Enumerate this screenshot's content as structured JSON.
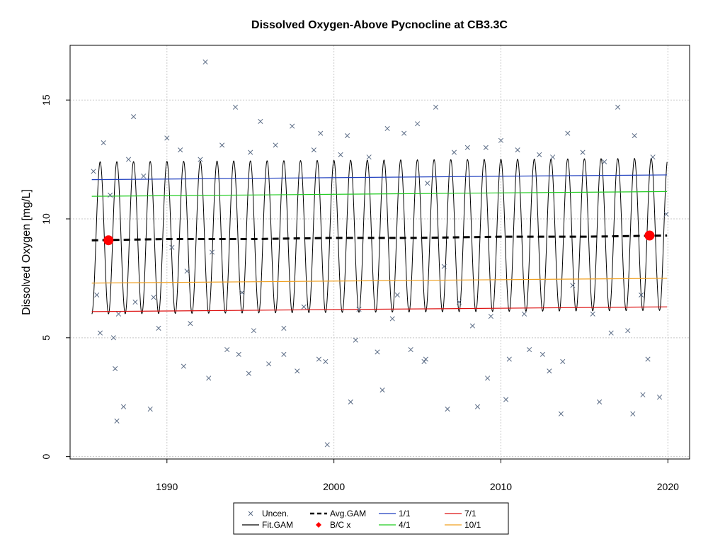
{
  "chart_data": {
    "type": "scatter",
    "title": "Dissolved Oxygen-Above Pycnocline at CB3.3C",
    "xlabel": "",
    "ylabel": "Dissolved Oxygen [mg/L]",
    "xlim": [
      1984.2,
      2021.3
    ],
    "ylim": [
      -0.1,
      17.3
    ],
    "xticks": [
      1990,
      2000,
      2010,
      2020
    ],
    "yticks": [
      0,
      5,
      10,
      15
    ],
    "grid": true,
    "legend_position": "bottom-center",
    "legend": {
      "columns": [
        [
          {
            "label": "Uncen.",
            "kind": "x",
            "color": "#5a6b85"
          },
          {
            "label": "Fit.GAM",
            "kind": "line",
            "color": "#000000"
          }
        ],
        [
          {
            "label": "Avg.GAM",
            "kind": "dash",
            "color": "#000000"
          },
          {
            "label": "B/C x",
            "kind": "diamond",
            "color": "#ff0000"
          }
        ],
        [
          {
            "label": "1/1",
            "kind": "line",
            "color": "#1f3fbf"
          },
          {
            "label": "4/1",
            "kind": "line",
            "color": "#22cc22"
          }
        ],
        [
          {
            "label": "7/1",
            "kind": "line",
            "color": "#dd1111"
          },
          {
            "label": "10/1",
            "kind": "line",
            "color": "#f0a020"
          }
        ]
      ]
    },
    "fit_gam": {
      "x_start": 1985.5,
      "x_end": 2019.95,
      "mean_start": 9.2,
      "mean_end": 9.35,
      "amplitude": 3.2,
      "color": "#000000"
    },
    "avg_gam": {
      "x": [
        1985.5,
        1990,
        1995,
        2000,
        2005,
        2010,
        2015,
        2019.95
      ],
      "y": [
        9.1,
        9.15,
        9.15,
        9.2,
        9.2,
        9.25,
        9.25,
        9.3
      ],
      "color": "#000000"
    },
    "seasonal_series": [
      {
        "name": "1/1",
        "color": "#1f3fbf",
        "x": [
          1985.5,
          2019.95
        ],
        "y": [
          11.65,
          11.85
        ]
      },
      {
        "name": "4/1",
        "color": "#22cc22",
        "x": [
          1985.5,
          2019.95
        ],
        "y": [
          10.95,
          11.15
        ]
      },
      {
        "name": "10/1",
        "color": "#f0a020",
        "x": [
          1985.5,
          2019.95
        ],
        "y": [
          7.3,
          7.5
        ]
      },
      {
        "name": "7/1",
        "color": "#dd1111",
        "x": [
          1985.5,
          2019.95
        ],
        "y": [
          6.1,
          6.3
        ]
      }
    ],
    "bc_points": {
      "color": "#ff0000",
      "x": [
        1986.5,
        2018.9
      ],
      "y": [
        9.1,
        9.3
      ]
    },
    "uncen": {
      "color": "#5a6b85",
      "x": [
        1985.6,
        1985.8,
        1986.0,
        1986.2,
        1986.6,
        1986.8,
        1987.1,
        1987.4,
        1987.7,
        1988.0,
        1988.1,
        1988.6,
        1989.2,
        1989.5,
        1990.0,
        1990.3,
        1990.8,
        1991.2,
        1991.4,
        1992.0,
        1992.3,
        1992.5,
        1992.7,
        1993.3,
        1993.6,
        1994.1,
        1994.3,
        1994.5,
        1995.0,
        1995.2,
        1995.6,
        1996.1,
        1996.5,
        1997.0,
        1997.5,
        1997.8,
        1998.2,
        1998.8,
        1999.2,
        1999.5,
        1999.6,
        2000.4,
        2000.8,
        2001.3,
        2001.5,
        2002.1,
        2002.6,
        2003.2,
        2003.5,
        2003.8,
        2004.2,
        2004.6,
        2005.0,
        2005.4,
        2005.6,
        2006.1,
        2006.6,
        2007.2,
        2007.5,
        2008.0,
        2008.3,
        2008.6,
        2009.1,
        2009.4,
        2010.0,
        2010.5,
        2011.0,
        2011.4,
        2011.7,
        2012.3,
        2012.5,
        2013.1,
        2013.6,
        2014.0,
        2014.3,
        2014.9,
        2015.5,
        2016.2,
        2016.6,
        2017.0,
        2017.6,
        2018.0,
        2018.4,
        2018.8,
        2019.1,
        2019.5,
        2019.9,
        1987.0,
        1989.0,
        1991.0,
        1994.9,
        1997.0,
        2001.0,
        2002.9,
        2006.8,
        2009.2,
        2012.9,
        2015.9,
        2017.9,
        2005.5,
        2010.3,
        1986.9,
        1999.1,
        2013.7,
        2018.5
      ],
      "y": [
        12.0,
        6.8,
        5.2,
        13.2,
        11.0,
        5.0,
        6.0,
        2.1,
        12.5,
        14.3,
        6.5,
        11.8,
        6.7,
        5.4,
        13.4,
        8.8,
        12.9,
        7.8,
        5.6,
        12.5,
        16.6,
        3.3,
        8.6,
        13.1,
        4.5,
        14.7,
        4.3,
        6.9,
        12.8,
        5.3,
        14.1,
        3.9,
        13.1,
        5.4,
        13.9,
        3.6,
        6.3,
        12.9,
        13.6,
        4.0,
        0.5,
        12.7,
        13.5,
        4.9,
        6.2,
        12.6,
        4.4,
        13.8,
        5.8,
        6.8,
        13.6,
        4.5,
        14.0,
        4.0,
        11.5,
        14.7,
        8.0,
        12.8,
        6.5,
        13.0,
        5.5,
        2.1,
        13.0,
        5.9,
        13.3,
        4.1,
        12.9,
        6.0,
        4.5,
        12.7,
        4.3,
        12.6,
        1.8,
        13.6,
        7.2,
        12.8,
        6.0,
        12.4,
        5.2,
        14.7,
        5.3,
        13.5,
        6.8,
        4.1,
        12.6,
        2.5,
        10.2,
        1.5,
        2.0,
        3.8,
        3.5,
        4.3,
        2.3,
        2.8,
        2.0,
        3.3,
        3.6,
        2.3,
        1.8,
        4.1,
        2.4,
        3.7,
        4.1,
        4.0,
        2.6
      ]
    }
  }
}
